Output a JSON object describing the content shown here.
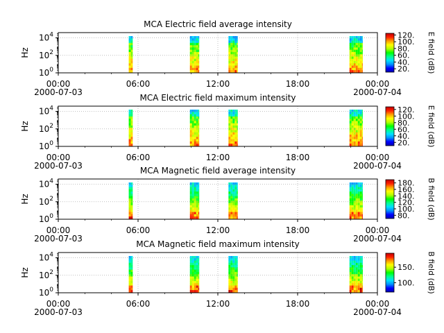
{
  "colors": {
    "colormap": [
      "#0000b0",
      "#0000ff",
      "#0090ff",
      "#00e0ff",
      "#00ff90",
      "#00ff00",
      "#b0ff00",
      "#ffff00",
      "#ffa000",
      "#ff2000",
      "#c00000"
    ],
    "grid": "#9a9a9a",
    "axis": "#000000"
  },
  "chart_data": [
    {
      "type": "heatmap",
      "title": "MCA  Electric field average intensity",
      "ylabel": "Hz",
      "y_scale": "log",
      "y_ticks": [
        {
          "base": "10",
          "exp": "0"
        },
        {
          "base": "10",
          "exp": "2"
        },
        {
          "base": "10",
          "exp": "4"
        }
      ],
      "x_ticks": [
        {
          "time": "00:00",
          "date": "2000-07-03"
        },
        {
          "time": "06:00",
          "date": ""
        },
        {
          "time": "12:00",
          "date": ""
        },
        {
          "time": "18:00",
          "date": ""
        },
        {
          "time": "00:00",
          "date": "2000-07-04"
        }
      ],
      "xlim_hours": [
        0,
        24
      ],
      "ylim_log10": [
        0,
        4.6
      ],
      "colorbar": {
        "label": "E field (dB)",
        "ticks": [
          "20.",
          "40.",
          "60.",
          "80.",
          "100.",
          "120."
        ],
        "range": [
          10,
          125
        ]
      },
      "data_intervals_hours": [
        [
          5.3,
          5.6
        ],
        [
          9.9,
          10.6
        ],
        [
          12.8,
          13.5
        ],
        [
          21.9,
          22.9
        ]
      ],
      "value_range": [
        15,
        115
      ]
    },
    {
      "type": "heatmap",
      "title": "MCA  Electric field maximum intensity",
      "ylabel": "Hz",
      "y_scale": "log",
      "y_ticks": [
        {
          "base": "10",
          "exp": "0"
        },
        {
          "base": "10",
          "exp": "2"
        },
        {
          "base": "10",
          "exp": "4"
        }
      ],
      "x_ticks": [
        {
          "time": "00:00",
          "date": "2000-07-03"
        },
        {
          "time": "06:00",
          "date": ""
        },
        {
          "time": "12:00",
          "date": ""
        },
        {
          "time": "18:00",
          "date": ""
        },
        {
          "time": "00:00",
          "date": "2000-07-04"
        }
      ],
      "xlim_hours": [
        0,
        24
      ],
      "ylim_log10": [
        0,
        4.6
      ],
      "colorbar": {
        "label": "E field (dB)",
        "ticks": [
          "20.",
          "40.",
          "60.",
          "80.",
          "100.",
          "120."
        ],
        "range": [
          10,
          128
        ]
      },
      "data_intervals_hours": [
        [
          5.3,
          5.6
        ],
        [
          9.9,
          10.6
        ],
        [
          12.8,
          13.5
        ],
        [
          21.9,
          22.9
        ]
      ],
      "value_range": [
        20,
        120
      ]
    },
    {
      "type": "heatmap",
      "title": "MCA  Magnetic field average intensity",
      "ylabel": "Hz",
      "y_scale": "log",
      "y_ticks": [
        {
          "base": "10",
          "exp": "0"
        },
        {
          "base": "10",
          "exp": "2"
        },
        {
          "base": "10",
          "exp": "4"
        }
      ],
      "x_ticks": [
        {
          "time": "00:00",
          "date": "2000-07-03"
        },
        {
          "time": "06:00",
          "date": ""
        },
        {
          "time": "12:00",
          "date": ""
        },
        {
          "time": "18:00",
          "date": ""
        },
        {
          "time": "00:00",
          "date": "2000-07-04"
        }
      ],
      "xlim_hours": [
        0,
        24
      ],
      "ylim_log10": [
        0,
        4.6
      ],
      "colorbar": {
        "label": "B field (dB)",
        "ticks": [
          "80.",
          "100.",
          "120.",
          "140.",
          "160.",
          "180."
        ],
        "range": [
          70,
          190
        ]
      },
      "data_intervals_hours": [
        [
          5.3,
          5.6
        ],
        [
          9.9,
          10.6
        ],
        [
          12.8,
          13.5
        ],
        [
          21.9,
          22.9
        ]
      ],
      "value_range": [
        80,
        180
      ]
    },
    {
      "type": "heatmap",
      "title": "MCA  Magnetic field maximum intensity",
      "ylabel": "Hz",
      "y_scale": "log",
      "y_ticks": [
        {
          "base": "10",
          "exp": "0"
        },
        {
          "base": "10",
          "exp": "2"
        },
        {
          "base": "10",
          "exp": "4"
        }
      ],
      "x_ticks": [
        {
          "time": "00:00",
          "date": "2000-07-03"
        },
        {
          "time": "06:00",
          "date": ""
        },
        {
          "time": "12:00",
          "date": ""
        },
        {
          "time": "18:00",
          "date": ""
        },
        {
          "time": "00:00",
          "date": "2000-07-04"
        }
      ],
      "xlim_hours": [
        0,
        24
      ],
      "ylim_log10": [
        0,
        4.6
      ],
      "colorbar": {
        "label": "B field (dB)",
        "ticks": [
          "100.",
          "150."
        ],
        "range": [
          70,
          195
        ]
      },
      "data_intervals_hours": [
        [
          5.3,
          5.6
        ],
        [
          9.9,
          10.6
        ],
        [
          12.8,
          13.5
        ],
        [
          21.9,
          22.9
        ]
      ],
      "value_range": [
        80,
        185
      ]
    }
  ]
}
